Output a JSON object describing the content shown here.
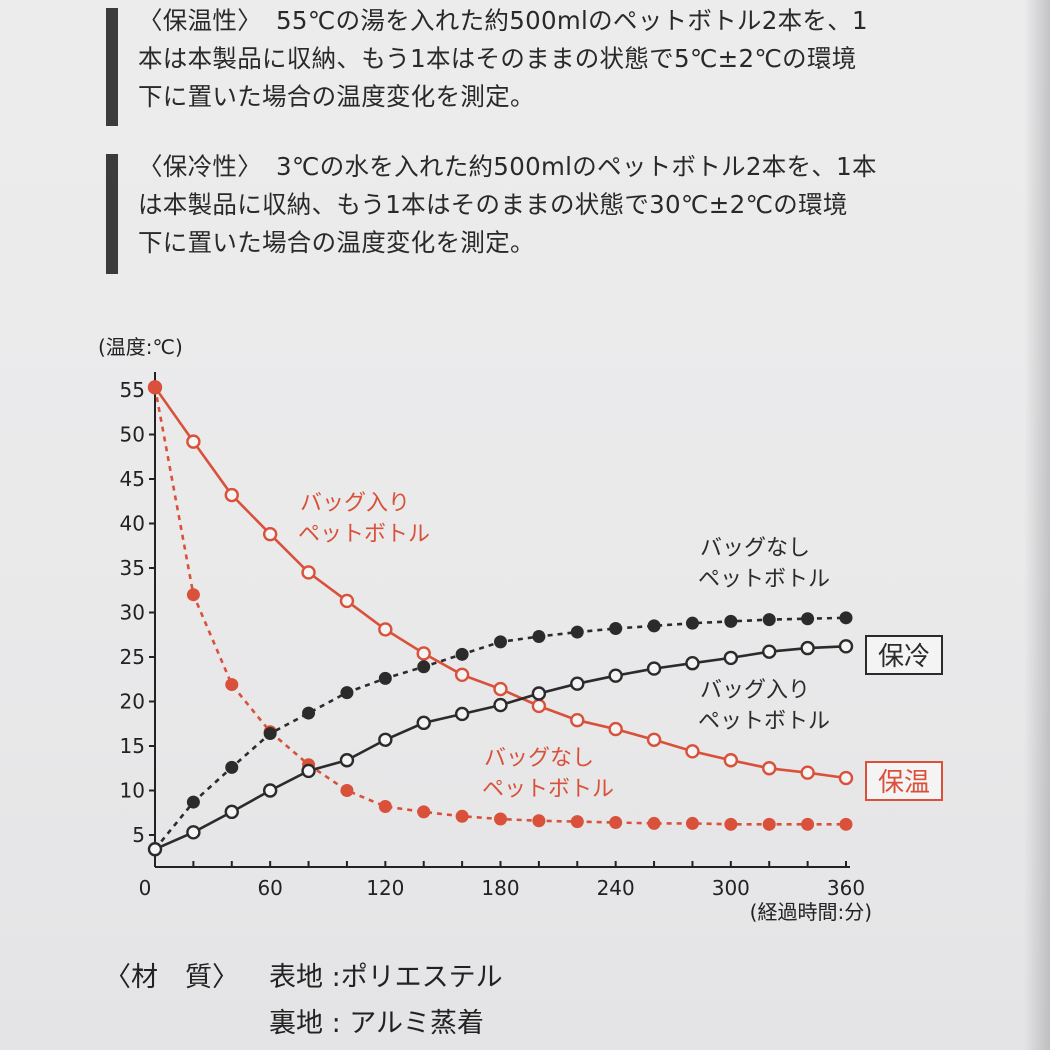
{
  "notes": [
    {
      "label": "〈保温性〉",
      "lines": [
        "55℃の湯を入れた約500mlのペットボトル2本を、1",
        "本は本製品に収納、もう1本はそのままの状態で5℃±2℃の環境",
        "下に置いた場合の温度変化を測定。"
      ]
    },
    {
      "label": "〈保冷性〉",
      "lines": [
        "3℃の水を入れた約500mlのペットボトル2本を、1本",
        "は本製品に収納、もう1本はそのままの状態で30℃±2℃の環境",
        "下に置いた場合の温度変化を測定。"
      ]
    }
  ],
  "colors": {
    "warm": "#d9513a",
    "cold": "#2b2b2b",
    "axis": "#222222"
  },
  "chart_data": {
    "type": "line",
    "ylabel": "(温度:℃)",
    "xlabel": "(経過時間:分)",
    "xlim": [
      0,
      360
    ],
    "ylim": [
      3,
      56
    ],
    "x_ticks": [
      0,
      60,
      120,
      180,
      240,
      300,
      360
    ],
    "y_ticks": [
      5,
      10,
      15,
      20,
      25,
      30,
      35,
      40,
      45,
      50,
      55
    ],
    "x": [
      0,
      20,
      40,
      60,
      80,
      100,
      120,
      140,
      160,
      180,
      200,
      220,
      240,
      260,
      280,
      300,
      320,
      340,
      360
    ],
    "grid": false,
    "series": [
      {
        "name": "バッグ入り ペットボトル",
        "group": "保温",
        "style": "solid",
        "marker": "hollow",
        "color": "#d9513a",
        "values": [
          55.3,
          49.2,
          43.2,
          38.8,
          34.5,
          31.3,
          28.1,
          25.4,
          23.0,
          21.4,
          19.5,
          17.9,
          16.9,
          15.7,
          14.4,
          13.4,
          12.5,
          12.0,
          11.4
        ]
      },
      {
        "name": "バッグなし ペットボトル",
        "group": "保温",
        "style": "dotted",
        "marker": "filled",
        "color": "#d9513a",
        "values": [
          55.3,
          32.0,
          21.9,
          16.6,
          12.9,
          10.0,
          8.2,
          7.6,
          7.1,
          6.8,
          6.6,
          6.5,
          6.4,
          6.3,
          6.3,
          6.2,
          6.2,
          6.2,
          6.2
        ]
      },
      {
        "name": "バッグなし ペットボトル",
        "group": "保冷",
        "style": "dotted",
        "marker": "filled",
        "color": "#2b2b2b",
        "values": [
          3.4,
          8.7,
          12.6,
          16.4,
          18.7,
          21.0,
          22.6,
          23.9,
          25.3,
          26.7,
          27.3,
          27.8,
          28.2,
          28.5,
          28.8,
          29.0,
          29.2,
          29.3,
          29.4
        ]
      },
      {
        "name": "バッグ入り ペットボトル",
        "group": "保冷",
        "style": "solid",
        "marker": "hollow",
        "color": "#2b2b2b",
        "values": [
          3.4,
          5.3,
          7.6,
          10.0,
          12.2,
          13.4,
          15.7,
          17.6,
          18.6,
          19.6,
          20.9,
          22.0,
          22.9,
          23.7,
          24.3,
          24.9,
          25.6,
          26.0,
          26.2
        ]
      }
    ],
    "annotations": [
      {
        "lines": [
          "バッグ入り",
          "ペットボトル"
        ],
        "color": "#d9513a"
      },
      {
        "lines": [
          "バッグなし",
          "ペットボトル"
        ],
        "color": "#2b2b2b"
      },
      {
        "lines": [
          "バッグ入り",
          "ペットボトル"
        ],
        "color": "#2b2b2b"
      },
      {
        "lines": [
          "バッグなし",
          "ペットボトル"
        ],
        "color": "#d9513a"
      }
    ],
    "group_labels": [
      {
        "text": "保冷",
        "color": "#2b2b2b"
      },
      {
        "text": "保温",
        "color": "#d9513a"
      }
    ]
  },
  "material": {
    "label": "〈材　質〉",
    "rows": [
      {
        "name": "表地",
        "value": "ポリエステル"
      },
      {
        "name": "裏地",
        "value": "アルミ蒸着"
      }
    ]
  }
}
